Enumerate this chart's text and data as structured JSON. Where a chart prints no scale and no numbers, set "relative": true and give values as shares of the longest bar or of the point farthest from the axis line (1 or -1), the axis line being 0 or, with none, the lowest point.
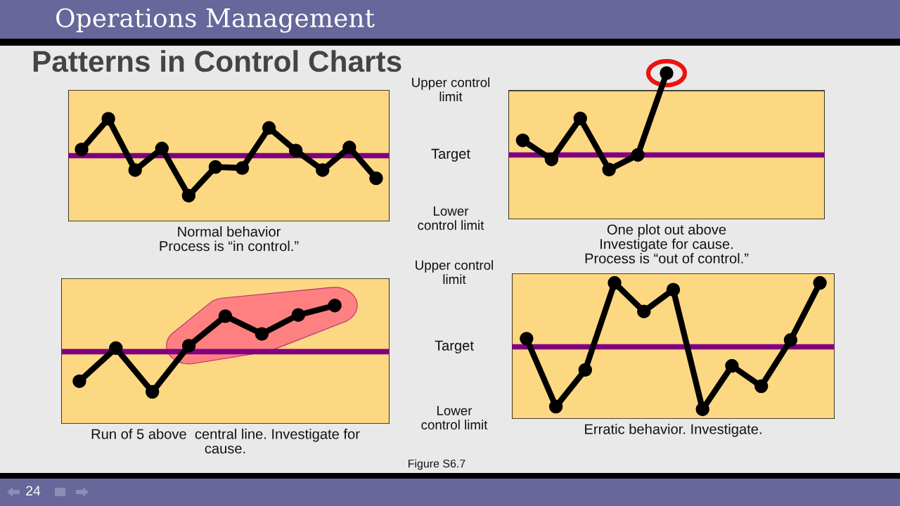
{
  "chart_data": [
    {
      "type": "other",
      "title": "Patterns in Control Charts",
      "annotations": [
        "Operations Management"
      ]
    },
    {
      "type": "line",
      "relative": true,
      "xlabel": "Normal behavior\nProcess is “in control.”",
      "categories": [
        null,
        null,
        null,
        null,
        null,
        null,
        null,
        null,
        null,
        null,
        null,
        null
      ],
      "series": [
        {
          "color": "#000000",
          "values": [
            0.7,
            1.0,
            0.5,
            0.71,
            0.25,
            0.53,
            0.52,
            0.91,
            0.69,
            0.5,
            0.72,
            0.42
          ]
        }
      ],
      "marker": "circle",
      "bands": [
        {
          "axis": "y",
          "from": 0,
          "to": 1.28,
          "color": "#fdd882"
        }
      ],
      "ref_lines": [
        {
          "axis": "y",
          "value": 0.64,
          "color": "#800080"
        }
      ]
    },
    {
      "type": "line",
      "relative": true,
      "xlabel": "One plot out above\nInvestigate for cause.\nProcess is “out of control.”",
      "categories": [
        null,
        null,
        null,
        null,
        null,
        null,
        null,
        null,
        null,
        null,
        null
      ],
      "series": [
        {
          "color": "#000000",
          "values": [
            0.54,
            0.41,
            0.69,
            0.34,
            0.44,
            1.0,
            null,
            null,
            null,
            null,
            null
          ]
        }
      ],
      "marker": "circle",
      "bands": [
        {
          "axis": "y",
          "from": 0,
          "to": 0.88,
          "color": "#fdd882"
        }
      ],
      "ref_lines": [
        {
          "axis": "y",
          "value": 0.44,
          "color": "#800080",
          "label": "Target"
        }
      ],
      "annotations": [
        "Upper control\nlimit",
        "Lower\ncontrol limit"
      ]
    },
    {
      "type": "line",
      "relative": true,
      "xlabel": "Run of 5 above  central line. Investigate for\ncause.",
      "categories": [
        null,
        null,
        null,
        null,
        null,
        null,
        null,
        null,
        null
      ],
      "series": [
        {
          "color": "#000000",
          "values": [
            0.36,
            0.64,
            0.27,
            0.66,
            0.91,
            0.76,
            0.92,
            1.0,
            null
          ]
        }
      ],
      "marker": "circle",
      "bands": [
        {
          "axis": "y",
          "from": 0,
          "to": 1.23,
          "color": "#fdd882"
        }
      ],
      "ref_lines": [
        {
          "axis": "y",
          "value": 0.61,
          "color": "#800080"
        }
      ]
    },
    {
      "type": "line",
      "relative": true,
      "xlabel": "Erratic behavior. Investigate.",
      "categories": [
        null,
        null,
        null,
        null,
        null,
        null,
        null,
        null,
        null,
        null,
        null
      ],
      "series": [
        {
          "color": "#000000",
          "values": [
            0.59,
            0.09,
            0.36,
            1.0,
            0.79,
            0.95,
            0.07,
            0.39,
            0.24,
            0.58,
            1.0
          ]
        }
      ],
      "marker": "circle",
      "bands": [
        {
          "axis": "y",
          "from": 0,
          "to": 1.07,
          "color": "#fdd882"
        }
      ],
      "ref_lines": [
        {
          "axis": "y",
          "value": 0.53,
          "color": "#800080",
          "label": "Target"
        }
      ],
      "annotations": [
        "Upper control\nlimit",
        "Lower\ncontrol limit",
        "Figure S6.7"
      ]
    },
    {
      "type": "other",
      "annotations": [
        "24"
      ]
    }
  ]
}
